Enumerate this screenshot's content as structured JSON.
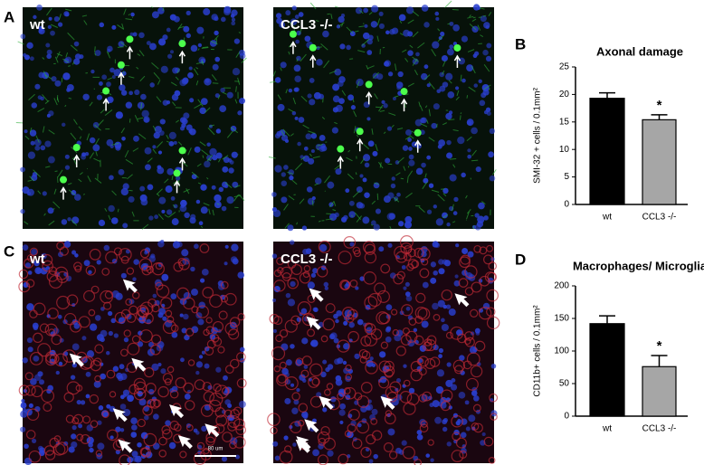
{
  "micrographs": [
    {
      "panel": "A",
      "images": [
        {
          "label": "wt"
        },
        {
          "label": "CCL3 -/-"
        }
      ]
    },
    {
      "panel": "C",
      "images": [
        {
          "label": "wt"
        },
        {
          "label": "CCL3 -/-"
        }
      ],
      "scale_bar": "80 um"
    }
  ],
  "chart_data": [
    {
      "type": "bar",
      "panel": "B",
      "title": "Axonal damage",
      "ylabel": "SMI-32 + cells / 0.1mm²",
      "categories": [
        "wt",
        "CCL3 -/-"
      ],
      "values": [
        19.3,
        15.4
      ],
      "errors": [
        1.0,
        0.9
      ],
      "colors": [
        "#000000",
        "#a6a6a6"
      ],
      "ylim": [
        0,
        25
      ],
      "yticks": [
        0,
        5,
        10,
        15,
        20,
        25
      ],
      "annotations": [
        {
          "x": "CCL3 -/-",
          "text": "*"
        }
      ]
    },
    {
      "type": "bar",
      "panel": "D",
      "title": "Macrophages/ Microglia",
      "ylabel": "CD11b+ cells / 0.1mm²",
      "categories": [
        "wt",
        "CCL3 -/-"
      ],
      "values": [
        142,
        76
      ],
      "errors": [
        12,
        17
      ],
      "colors": [
        "#000000",
        "#a6a6a6"
      ],
      "ylim": [
        0,
        200
      ],
      "yticks": [
        0,
        50,
        100,
        150,
        200
      ],
      "annotations": [
        {
          "x": "CCL3 -/-",
          "text": "*"
        }
      ]
    }
  ]
}
